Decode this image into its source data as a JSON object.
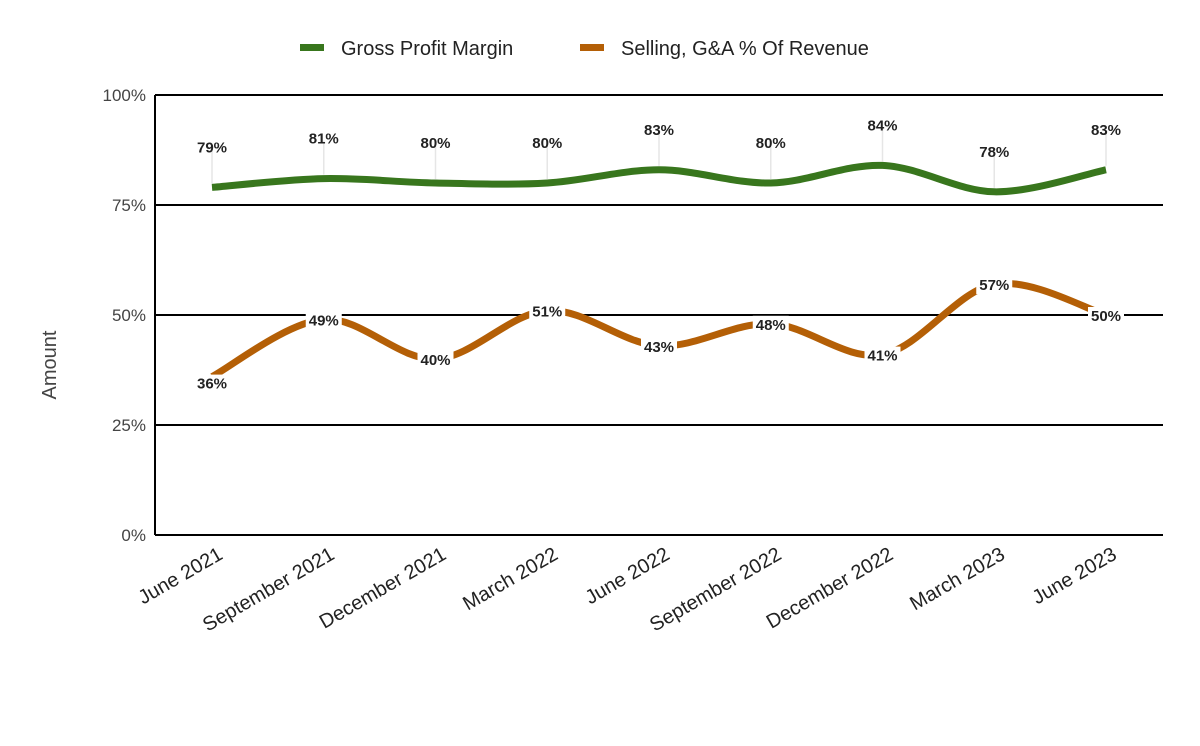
{
  "chart_data": {
    "type": "line",
    "title": "",
    "xlabel": "",
    "ylabel": "Amount",
    "ylim": [
      0,
      100
    ],
    "yticks": [
      "0%",
      "25%",
      "50%",
      "75%",
      "100%"
    ],
    "grid": true,
    "legend_position": "top",
    "categories": [
      "June 2021",
      "September 2021",
      "December 2021",
      "March 2022",
      "June 2022",
      "September 2022",
      "December 2022",
      "March 2023",
      "June 2023"
    ],
    "series": [
      {
        "name": "Gross Profit Margin",
        "color": "#38761d",
        "values": [
          79,
          81,
          80,
          80,
          83,
          80,
          84,
          78,
          83
        ]
      },
      {
        "name": "Selling, G&A % Of Revenue",
        "color": "#b45f06",
        "values": [
          36,
          49,
          40,
          51,
          43,
          48,
          41,
          57,
          50
        ]
      }
    ]
  }
}
